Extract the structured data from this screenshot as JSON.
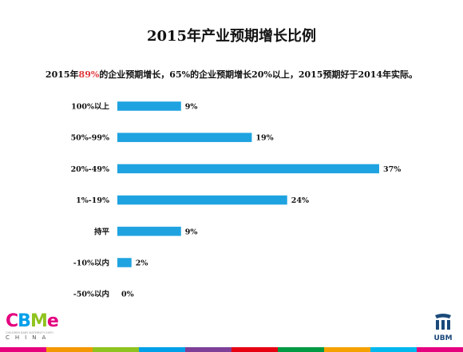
{
  "title": "2015年产业预期增长比例",
  "subtitle": {
    "prefix": "2015年",
    "highlight": "89%",
    "suffix": "的企业预期增长，65%的企业预期增长20%以上，2015预期好于2014年实际。"
  },
  "colors": {
    "bar": "#1fa3e0",
    "highlight": "#e0393c",
    "strip": [
      "#e6007e",
      "#f39800",
      "#8fc31f",
      "#00a0e9",
      "#7d3f98",
      "#e60012",
      "#009944",
      "#f5a200",
      "#00b7ee",
      "#e4007f"
    ]
  },
  "chart_data": {
    "type": "bar",
    "orientation": "horizontal",
    "categories": [
      "100%以上",
      "50%-99%",
      "20%-49%",
      "1%-19%",
      "持平",
      "-10%以内",
      "-50%以内"
    ],
    "values": [
      9,
      19,
      37,
      24,
      9,
      2,
      0
    ],
    "value_labels": [
      "9%",
      "19%",
      "37%",
      "24%",
      "9%",
      "2%",
      "0%"
    ],
    "unit": "%",
    "xlim": [
      0,
      37
    ],
    "grid": false,
    "legend": "none"
  },
  "logos": {
    "cbme": {
      "word": "CBME",
      "china": "CHINA",
      "small": "CHILDREN BABY MATERNITY EXPO"
    },
    "ubm": {
      "name": "UBM"
    }
  }
}
